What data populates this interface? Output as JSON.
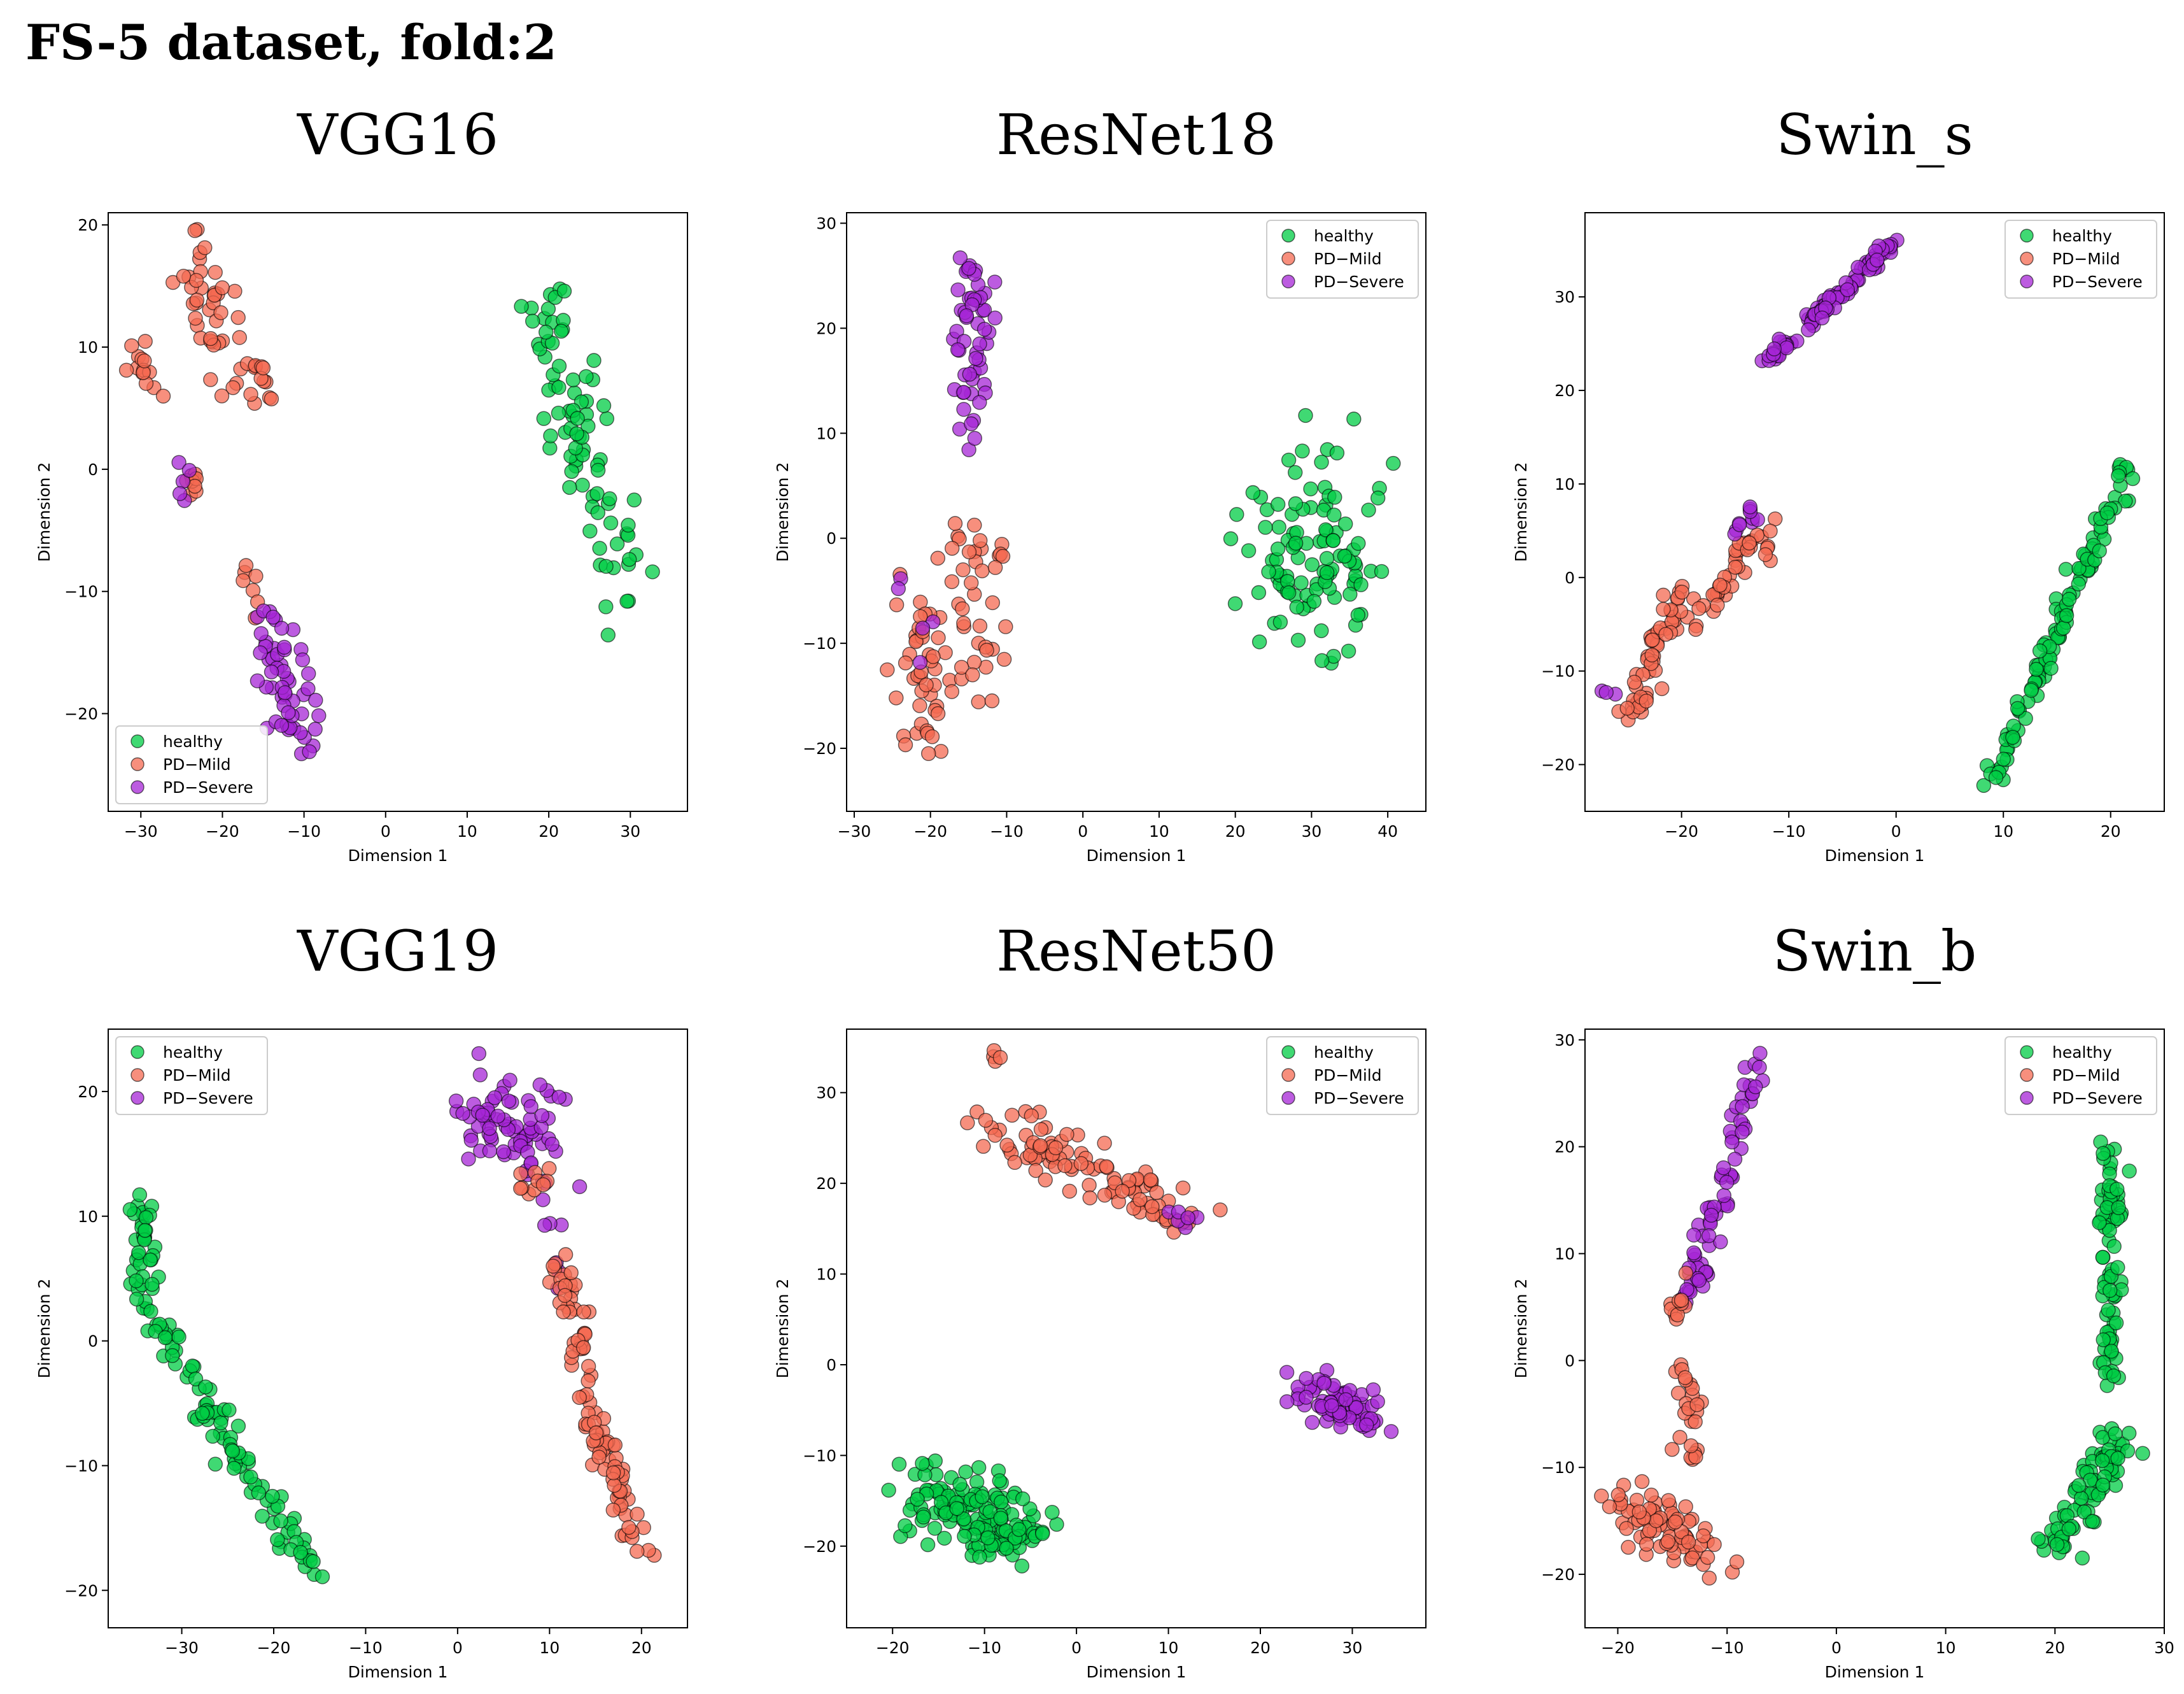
{
  "figure_title": "FS-5 dataset, fold:2",
  "series_colors": {
    "healthy": "#00cc44",
    "PD-Mild": "#f46a52",
    "PD-Severe": "#a625d6"
  },
  "chart_data": [
    {
      "type": "scatter",
      "title": "VGG16",
      "xlabel": "Dimension 1",
      "ylabel": "Dimension 2",
      "xlim": [
        -34,
        37
      ],
      "ylim": [
        -28,
        21
      ],
      "xticks": [
        -30,
        -20,
        -10,
        0,
        10,
        20,
        30
      ],
      "yticks": [
        -20,
        -10,
        0,
        10,
        20
      ],
      "grid": false,
      "legend_position": "lower-left",
      "legend": [
        "healthy",
        "PD−Mild",
        "PD−Severe"
      ],
      "clusters": [
        {
          "series": "healthy",
          "n": 40,
          "x1": 18,
          "y1": 15,
          "x2": 24,
          "y2": 4,
          "spread": 3
        },
        {
          "series": "healthy",
          "n": 45,
          "x1": 22,
          "y1": 4,
          "x2": 30,
          "y2": -9,
          "spread": 3.5
        },
        {
          "series": "PD-Mild",
          "n": 45,
          "x1": -24,
          "y1": 17,
          "x2": -18,
          "y2": 8,
          "spread": 3
        },
        {
          "series": "PD-Mild",
          "n": 14,
          "x1": -31,
          "y1": 9,
          "x2": -28,
          "y2": 6,
          "spread": 1.5
        },
        {
          "series": "PD-Mild",
          "n": 10,
          "x1": -16,
          "y1": 8,
          "x2": -14,
          "y2": 6,
          "spread": 1.5
        },
        {
          "series": "PD-Mild",
          "n": 10,
          "x1": -25,
          "y1": 0,
          "x2": -23,
          "y2": -2,
          "spread": 1.2
        },
        {
          "series": "PD-Mild",
          "n": 7,
          "x1": -17,
          "y1": -8,
          "x2": -15,
          "y2": -12,
          "spread": 1
        },
        {
          "series": "PD-Severe",
          "n": 55,
          "x1": -15,
          "y1": -12,
          "x2": -10,
          "y2": -22,
          "spread": 3
        },
        {
          "series": "PD-Severe",
          "n": 5,
          "x1": -26,
          "y1": 1,
          "x2": -24,
          "y2": -3,
          "spread": 1
        }
      ]
    },
    {
      "type": "scatter",
      "title": "ResNet18",
      "xlabel": "Dimension 1",
      "ylabel": "Dimension 2",
      "xlim": [
        -31,
        45
      ],
      "ylim": [
        -26,
        31
      ],
      "xticks": [
        -30,
        -20,
        -10,
        0,
        10,
        20,
        30,
        40
      ],
      "yticks": [
        -20,
        -10,
        0,
        10,
        20,
        30
      ],
      "grid": false,
      "legend_position": "upper-right",
      "legend": [
        "healthy",
        "PD−Mild",
        "PD−Severe"
      ],
      "clusters": [
        {
          "series": "healthy",
          "n": 110,
          "x1": 30,
          "y1": 0,
          "x2": 30,
          "y2": -3,
          "spread": 8
        },
        {
          "series": "PD-Severe",
          "n": 55,
          "x1": -14,
          "y1": 27,
          "x2": -15,
          "y2": 9,
          "spread": 2.5
        },
        {
          "series": "PD-Mild",
          "n": 45,
          "x1": -22,
          "y1": -5,
          "x2": -20,
          "y2": -20,
          "spread": 3
        },
        {
          "series": "PD-Mild",
          "n": 35,
          "x1": -16,
          "y1": 2,
          "x2": -14,
          "y2": -14,
          "spread": 3
        },
        {
          "series": "PD-Mild",
          "n": 6,
          "x1": -12,
          "y1": -1,
          "x2": -10,
          "y2": -2,
          "spread": 1.5
        },
        {
          "series": "PD-Severe",
          "n": 5,
          "x1": -24,
          "y1": -4,
          "x2": -20,
          "y2": -10,
          "spread": 2
        }
      ]
    },
    {
      "type": "scatter",
      "title": "Swin_s",
      "xlabel": "Dimension 1",
      "ylabel": "Dimension 2",
      "xlim": [
        -29,
        25
      ],
      "ylim": [
        -25,
        39
      ],
      "xticks": [
        -20,
        -10,
        0,
        10,
        20
      ],
      "yticks": [
        -20,
        -10,
        0,
        10,
        20,
        30
      ],
      "grid": false,
      "legend_position": "upper-right",
      "legend": [
        "healthy",
        "PD−Mild",
        "PD−Severe"
      ],
      "clusters": [
        {
          "series": "PD-Severe",
          "n": 90,
          "x1": -12,
          "y1": 23,
          "x2": 0,
          "y2": 36,
          "spread": 0.6
        },
        {
          "series": "healthy",
          "n": 110,
          "x1": 9,
          "y1": -22,
          "x2": 22,
          "y2": 13,
          "spread": 0.9
        },
        {
          "series": "PD-Mild",
          "n": 55,
          "x1": -25,
          "y1": -15,
          "x2": -20,
          "y2": -1,
          "spread": 1.2
        },
        {
          "series": "PD-Mild",
          "n": 35,
          "x1": -19,
          "y1": -6,
          "x2": -13,
          "y2": 5,
          "spread": 1
        },
        {
          "series": "PD-Mild",
          "n": 6,
          "x1": -12,
          "y1": 2,
          "x2": -11,
          "y2": 6,
          "spread": 0.7
        },
        {
          "series": "PD-Severe",
          "n": 10,
          "x1": -15,
          "y1": 4,
          "x2": -13,
          "y2": 7,
          "spread": 0.8
        },
        {
          "series": "PD-Severe",
          "n": 3,
          "x1": -27,
          "y1": -12,
          "x2": -26,
          "y2": -13,
          "spread": 0.5
        }
      ]
    },
    {
      "type": "scatter",
      "title": "VGG19",
      "xlabel": "Dimension 1",
      "ylabel": "Dimension 2",
      "xlim": [
        -38,
        25
      ],
      "ylim": [
        -23,
        25
      ],
      "xticks": [
        -30,
        -20,
        -10,
        0,
        10,
        20
      ],
      "yticks": [
        -20,
        -10,
        0,
        10,
        20
      ],
      "grid": false,
      "legend_position": "upper-left",
      "legend": [
        "healthy",
        "PD−Mild",
        "PD−Severe"
      ],
      "clusters": [
        {
          "series": "healthy",
          "n": 40,
          "x1": -34,
          "y1": 11,
          "x2": -34,
          "y2": 3,
          "spread": 1.2
        },
        {
          "series": "healthy",
          "n": 90,
          "x1": -33,
          "y1": 2,
          "x2": -15,
          "y2": -20,
          "spread": 1.4
        },
        {
          "series": "PD-Severe",
          "n": 70,
          "x1": 1,
          "y1": 18,
          "x2": 10,
          "y2": 17,
          "spread": 3
        },
        {
          "series": "PD-Severe",
          "n": 14,
          "x1": 8,
          "y1": 14,
          "x2": 12,
          "y2": 4,
          "spread": 1.3
        },
        {
          "series": "PD-Mild",
          "n": 35,
          "x1": 11,
          "y1": 6,
          "x2": 14,
          "y2": -3,
          "spread": 1.5
        },
        {
          "series": "PD-Mild",
          "n": 60,
          "x1": 14,
          "y1": -4,
          "x2": 20,
          "y2": -17,
          "spread": 1.8
        },
        {
          "series": "PD-Mild",
          "n": 10,
          "x1": 7,
          "y1": 12,
          "x2": 10,
          "y2": 14,
          "spread": 1
        }
      ]
    },
    {
      "type": "scatter",
      "title": "ResNet50",
      "xlabel": "Dimension 1",
      "ylabel": "Dimension 2",
      "xlim": [
        -25,
        38
      ],
      "ylim": [
        -29,
        37
      ],
      "xticks": [
        -20,
        -10,
        0,
        10,
        20,
        30
      ],
      "yticks": [
        -20,
        -10,
        0,
        10,
        20,
        30
      ],
      "grid": false,
      "legend_position": "upper-right",
      "legend": [
        "healthy",
        "PD−Mild",
        "PD−Severe"
      ],
      "clusters": [
        {
          "series": "PD-Mild",
          "n": 100,
          "x1": -10,
          "y1": 27,
          "x2": 12,
          "y2": 16,
          "spread": 2.5
        },
        {
          "series": "PD-Mild",
          "n": 4,
          "x1": -9,
          "y1": 34,
          "x2": -8,
          "y2": 34,
          "spread": 0.6
        },
        {
          "series": "PD-Severe",
          "n": 70,
          "x1": 25,
          "y1": -3,
          "x2": 33,
          "y2": -6,
          "spread": 2.3
        },
        {
          "series": "PD-Severe",
          "n": 6,
          "x1": 10,
          "y1": 17,
          "x2": 14,
          "y2": 15,
          "spread": 1
        },
        {
          "series": "healthy",
          "n": 150,
          "x1": -17,
          "y1": -14,
          "x2": -5,
          "y2": -19,
          "spread": 4
        }
      ]
    },
    {
      "type": "scatter",
      "title": "Swin_b",
      "xlabel": "Dimension 1",
      "ylabel": "Dimension 2",
      "xlim": [
        -23,
        30
      ],
      "ylim": [
        -25,
        31
      ],
      "xticks": [
        -20,
        -10,
        0,
        10,
        20,
        30
      ],
      "yticks": [
        -20,
        -10,
        0,
        10,
        20,
        30
      ],
      "grid": false,
      "legend_position": "upper-right",
      "legend": [
        "healthy",
        "PD−Mild",
        "PD−Severe"
      ],
      "clusters": [
        {
          "series": "PD-Severe",
          "n": 70,
          "x1": -14,
          "y1": 5,
          "x2": -7,
          "y2": 29,
          "spread": 1
        },
        {
          "series": "PD-Mild",
          "n": 10,
          "x1": -15,
          "y1": 4,
          "x2": -14,
          "y2": 8,
          "spread": 0.8
        },
        {
          "series": "PD-Mild",
          "n": 25,
          "x1": -14,
          "y1": 0,
          "x2": -13,
          "y2": -10,
          "spread": 1.2
        },
        {
          "series": "PD-Mild",
          "n": 75,
          "x1": -20,
          "y1": -13,
          "x2": -12,
          "y2": -18,
          "spread": 2.6
        },
        {
          "series": "healthy",
          "n": 80,
          "x1": 25,
          "y1": 20,
          "x2": 25,
          "y2": -2,
          "spread": 1
        },
        {
          "series": "healthy",
          "n": 80,
          "x1": 26,
          "y1": -7,
          "x2": 20,
          "y2": -18,
          "spread": 1.8
        }
      ]
    }
  ]
}
